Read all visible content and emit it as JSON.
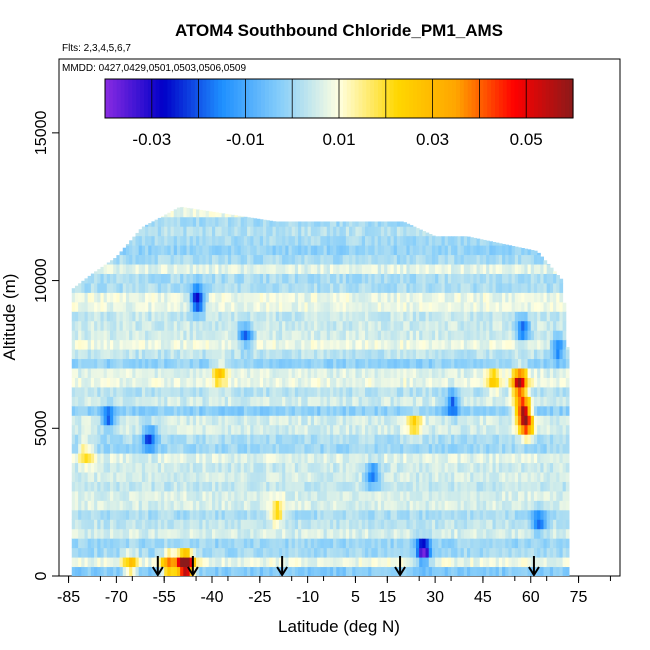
{
  "chart_data": {
    "type": "heatmap",
    "title": "ATOM4 Southbound Chloride_PM1_AMS",
    "flights_note": "Flts: 2,3,4,5,6,7",
    "mmdd_note": "MMDD: 0427,0429,0501,0503,0506,0509",
    "xlabel": "Latitude (deg N)",
    "ylabel": "Altitude (m)",
    "xlim": [
      -88,
      88
    ],
    "ylim": [
      0,
      17500
    ],
    "x_ticks": [
      -85,
      -70,
      -55,
      -40,
      -25,
      -10,
      5,
      15,
      30,
      45,
      60,
      75
    ],
    "x_tick_labels": [
      "-85",
      "-70",
      "-55",
      "-40",
      "-25",
      "-10",
      "5",
      "15",
      "30",
      "45",
      "60",
      "75"
    ],
    "y_ticks": [
      0,
      5000,
      10000,
      15000
    ],
    "y_tick_labels": [
      "0",
      "5000",
      "10000",
      "15000"
    ],
    "colorbar": {
      "range": [
        -0.04,
        0.06
      ],
      "tick_values": [
        -0.03,
        -0.01,
        0.01,
        0.03,
        0.05
      ],
      "tick_labels": [
        "-0.03",
        "-0.01",
        "0.01",
        "0.03",
        "0.05"
      ],
      "colors": [
        "#8a2be2",
        "#0000c8",
        "#1e90ff",
        "#87cefa",
        "#ffffe0",
        "#ffd700",
        "#ffa500",
        "#ff0000",
        "#8b1a1a"
      ]
    },
    "data_extent": {
      "lat_min": -84,
      "lat_max": 72,
      "alt_top_by_lat": [
        {
          "lat": -84,
          "alt": 9700
        },
        {
          "lat": -78,
          "alt": 10200
        },
        {
          "lat": -70,
          "alt": 10800
        },
        {
          "lat": -62,
          "alt": 11800
        },
        {
          "lat": -50,
          "alt": 12500
        },
        {
          "lat": -20,
          "alt": 12000
        },
        {
          "lat": 20,
          "alt": 12000
        },
        {
          "lat": 30,
          "alt": 11500
        },
        {
          "lat": 40,
          "alt": 11500
        },
        {
          "lat": 62,
          "alt": 11000
        },
        {
          "lat": 70,
          "alt": 10000
        },
        {
          "lat": 72,
          "alt": 7000
        }
      ],
      "background_value": 0.003
    },
    "hotspots": [
      {
        "lat": 56,
        "alt": 6400,
        "value": 0.055
      },
      {
        "lat": 57,
        "alt": 5500,
        "value": 0.05
      },
      {
        "lat": 58,
        "alt": 5000,
        "value": 0.045
      },
      {
        "lat": -48,
        "alt": 200,
        "value": 0.052
      },
      {
        "lat": -50,
        "alt": 200,
        "value": 0.04
      },
      {
        "lat": -54,
        "alt": 200,
        "value": 0.035
      },
      {
        "lat": -66,
        "alt": 200,
        "value": 0.025
      },
      {
        "lat": -38,
        "alt": 6700,
        "value": 0.022
      },
      {
        "lat": 48,
        "alt": 6500,
        "value": 0.022
      },
      {
        "lat": 23,
        "alt": 5000,
        "value": 0.022
      },
      {
        "lat": -20,
        "alt": 2000,
        "value": 0.022
      },
      {
        "lat": -80,
        "alt": 4000,
        "value": 0.02
      },
      {
        "lat": 26,
        "alt": 700,
        "value": -0.038
      },
      {
        "lat": -45,
        "alt": 9200,
        "value": -0.035
      },
      {
        "lat": -60,
        "alt": 4500,
        "value": -0.022
      },
      {
        "lat": 57,
        "alt": 8200,
        "value": -0.02
      },
      {
        "lat": -73,
        "alt": 5200,
        "value": -0.02
      },
      {
        "lat": 35,
        "alt": 5700,
        "value": -0.02
      },
      {
        "lat": 62,
        "alt": 1700,
        "value": -0.02
      },
      {
        "lat": -30,
        "alt": 8000,
        "value": -0.02
      },
      {
        "lat": 10,
        "alt": 3300,
        "value": -0.02
      },
      {
        "lat": 68,
        "alt": 7600,
        "value": -0.02
      }
    ],
    "flight_arrows_lat": [
      -57,
      -46,
      -18,
      19,
      61
    ]
  }
}
